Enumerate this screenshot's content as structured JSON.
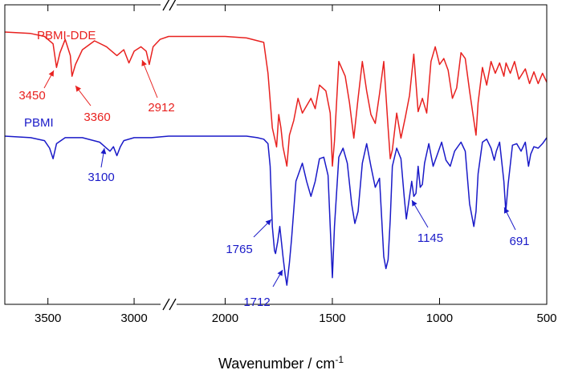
{
  "chart_data": {
    "type": "line",
    "xlabel": "Wavenumber / cm",
    "xlabel_sup": "-1",
    "x_axis_reversed": true,
    "x_axis_break": [
      2800,
      2260
    ],
    "x_ticks": [
      3500,
      3000,
      2000,
      1500,
      1000,
      500
    ],
    "x_tick_labels": [
      "3500",
      "3000",
      "2000",
      "1500",
      "1000",
      "500"
    ],
    "xlim": [
      3750,
      500
    ],
    "y_axis_visible": false,
    "grid": false,
    "colors": {
      "PBMI-DDE": "#e8211f",
      "PBMI": "#1a1ac8"
    },
    "series": [
      {
        "name": "PBMI-DDE",
        "color": "#e8211f",
        "x": [
          3750,
          3600,
          3520,
          3470,
          3450,
          3430,
          3400,
          3370,
          3360,
          3340,
          3300,
          3230,
          3160,
          3100,
          3060,
          3030,
          3000,
          2960,
          2930,
          2912,
          2890,
          2850,
          2800,
          2260,
          2000,
          1900,
          1820,
          1800,
          1780,
          1760,
          1750,
          1740,
          1730,
          1712,
          1700,
          1680,
          1660,
          1640,
          1600,
          1580,
          1560,
          1530,
          1510,
          1500,
          1490,
          1470,
          1440,
          1420,
          1400,
          1380,
          1360,
          1340,
          1320,
          1300,
          1280,
          1260,
          1240,
          1230,
          1220,
          1200,
          1180,
          1160,
          1140,
          1120,
          1100,
          1080,
          1060,
          1040,
          1020,
          1000,
          980,
          960,
          940,
          920,
          900,
          880,
          860,
          840,
          830,
          820,
          800,
          780,
          760,
          740,
          720,
          700,
          690,
          670,
          650,
          630,
          600,
          580,
          560,
          540,
          520,
          500
        ],
        "y": [
          100,
          99,
          97,
          92,
          76,
          86,
          95,
          84,
          70,
          78,
          88,
          94,
          90,
          84,
          88,
          79,
          87,
          90,
          87,
          78,
          90,
          95,
          97,
          97,
          97,
          96,
          93,
          72,
          35,
          22,
          44,
          35,
          22,
          9,
          30,
          40,
          55,
          45,
          55,
          48,
          64,
          60,
          45,
          9,
          26,
          80,
          70,
          52,
          28,
          55,
          80,
          60,
          44,
          38,
          58,
          80,
          35,
          14,
          20,
          45,
          28,
          42,
          57,
          85,
          46,
          55,
          45,
          80,
          90,
          78,
          82,
          74,
          55,
          62,
          86,
          82,
          60,
          40,
          30,
          52,
          76,
          64,
          80,
          72,
          79,
          70,
          79,
          72,
          80,
          68,
          75,
          65,
          73,
          65,
          72,
          66
        ]
      },
      {
        "name": "PBMI",
        "color": "#1a1ac8",
        "x": [
          3750,
          3600,
          3520,
          3490,
          3470,
          3450,
          3400,
          3300,
          3200,
          3140,
          3120,
          3100,
          3080,
          3060,
          3000,
          2900,
          2800,
          2260,
          2000,
          1900,
          1850,
          1820,
          1800,
          1790,
          1780,
          1770,
          1765,
          1755,
          1745,
          1730,
          1720,
          1712,
          1700,
          1690,
          1670,
          1650,
          1640,
          1620,
          1600,
          1580,
          1560,
          1540,
          1520,
          1510,
          1500,
          1490,
          1470,
          1450,
          1430,
          1410,
          1395,
          1380,
          1360,
          1340,
          1320,
          1300,
          1280,
          1260,
          1250,
          1240,
          1230,
          1220,
          1200,
          1180,
          1165,
          1155,
          1145,
          1130,
          1120,
          1110,
          1100,
          1090,
          1080,
          1070,
          1050,
          1030,
          1010,
          990,
          970,
          950,
          930,
          900,
          880,
          860,
          840,
          830,
          820,
          800,
          780,
          760,
          745,
          735,
          720,
          700,
          691,
          680,
          660,
          640,
          620,
          600,
          585,
          575,
          560,
          540,
          520,
          500
        ],
        "y": [
          100,
          99,
          97,
          92,
          85,
          95,
          99,
          99,
          96,
          90,
          93,
          87,
          93,
          97,
          99,
          99,
          100,
          100,
          100,
          100,
          99,
          98,
          95,
          80,
          40,
          24,
          22,
          30,
          40,
          20,
          8,
          1,
          16,
          32,
          70,
          78,
          82,
          70,
          60,
          70,
          85,
          86,
          74,
          40,
          6,
          40,
          86,
          92,
          82,
          55,
          42,
          50,
          82,
          95,
          80,
          66,
          72,
          20,
          12,
          18,
          45,
          80,
          92,
          85,
          60,
          45,
          55,
          70,
          60,
          62,
          80,
          66,
          68,
          82,
          95,
          80,
          88,
          96,
          84,
          80,
          90,
          96,
          90,
          55,
          40,
          50,
          75,
          96,
          98,
          92,
          84,
          90,
          96,
          70,
          50,
          68,
          94,
          95,
          90,
          96,
          80,
          88,
          93,
          92,
          95,
          99
        ]
      }
    ],
    "annotations": [
      {
        "label": "3450",
        "series": "PBMI-DDE",
        "x": 3450
      },
      {
        "label": "3360",
        "series": "PBMI-DDE",
        "x": 3360
      },
      {
        "label": "2912",
        "series": "PBMI-DDE",
        "x": 2912
      },
      {
        "label": "3100",
        "series": "PBMI",
        "x": 3100
      },
      {
        "label": "1765",
        "series": "PBMI",
        "x": 1765
      },
      {
        "label": "1712",
        "series": "PBMI",
        "x": 1712
      },
      {
        "label": "1145",
        "series": "PBMI",
        "x": 1145
      },
      {
        "label": "691",
        "series": "PBMI",
        "x": 691
      }
    ]
  }
}
